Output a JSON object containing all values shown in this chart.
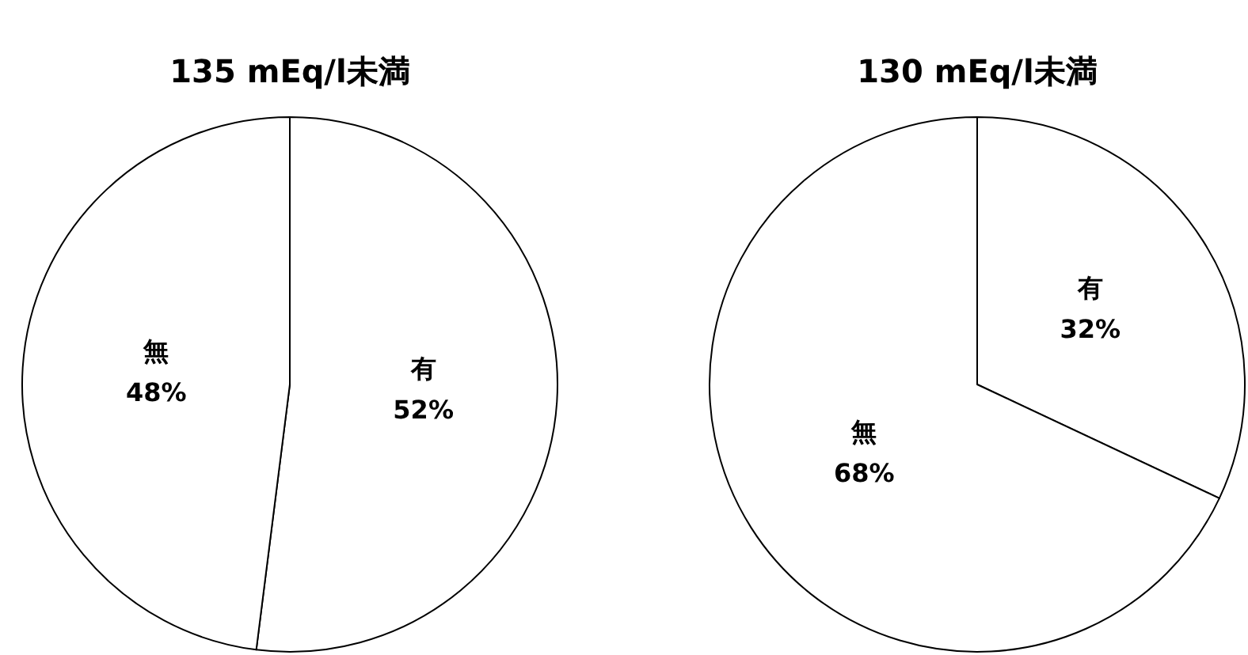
{
  "chart_data": [
    {
      "type": "pie",
      "title": "135 mEq/l未満",
      "categories": [
        "有",
        "無"
      ],
      "values": [
        52,
        48
      ],
      "colors": [
        "#ffffff",
        "#ffffff"
      ],
      "value_labels": [
        "52%",
        "48%"
      ]
    },
    {
      "type": "pie",
      "title": "130 mEq/l未満",
      "categories": [
        "有",
        "無"
      ],
      "values": [
        32,
        68
      ],
      "colors": [
        "#ffffff",
        "#ffffff"
      ],
      "value_labels": [
        "32%",
        "68%"
      ]
    }
  ]
}
